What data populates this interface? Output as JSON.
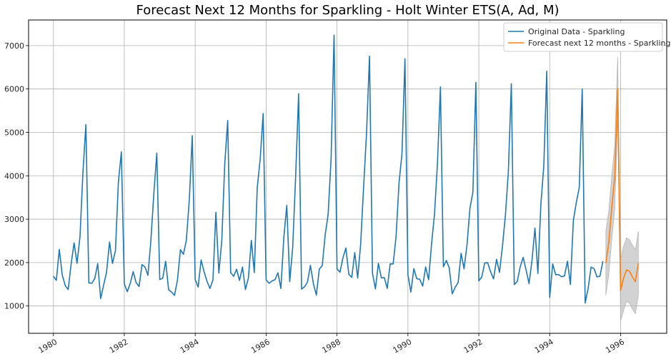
{
  "chart_data": {
    "type": "line",
    "title": "Forecast Next 12 Months for Sparkling - Holt Winter ETS(A, Ad, M)",
    "xlabel": "",
    "ylabel": "",
    "xlim": [
      1979.3,
      1997.3
    ],
    "ylim": [
      370,
      7590
    ],
    "x_ticks": [
      1980,
      1982,
      1984,
      1986,
      1988,
      1990,
      1992,
      1994,
      1996
    ],
    "x_tick_labels": [
      "1980",
      "1982",
      "1984",
      "1986",
      "1988",
      "1990",
      "1992",
      "1994",
      "1996"
    ],
    "y_ticks": [
      1000,
      2000,
      3000,
      4000,
      5000,
      6000,
      7000
    ],
    "y_tick_labels": [
      "1000",
      "2000",
      "3000",
      "4000",
      "5000",
      "6000",
      "7000"
    ],
    "grid": true,
    "legend_position": "top-right",
    "x_start": 1980.0,
    "x_step_months": 1,
    "series": [
      {
        "name": "Original Data - Sparkling",
        "color": "#1f77b4",
        "values": [
          1686,
          1591,
          2304,
          1712,
          1471,
          1377,
          1966,
          2453,
          1984,
          2596,
          4087,
          5179,
          1530,
          1523,
          1633,
          1976,
          1170,
          1480,
          1781,
          2472,
          1981,
          2273,
          3857,
          4551,
          1510,
          1329,
          1518,
          1790,
          1537,
          1449,
          1954,
          1897,
          1706,
          2514,
          3593,
          4524,
          1609,
          1638,
          2030,
          1375,
          1320,
          1245,
          1600,
          2298,
          2191,
          2511,
          3440,
          4923,
          1609,
          1435,
          2061,
          1789,
          1567,
          1404,
          1597,
          3159,
          1759,
          2504,
          4273,
          5274,
          1771,
          1682,
          1846,
          1589,
          1896,
          1379,
          1645,
          2512,
          1771,
          3727,
          4388,
          5434,
          1606,
          1523,
          1577,
          1605,
          1765,
          1403,
          2584,
          3318,
          1562,
          2349,
          3987,
          5891,
          1389,
          1442,
          1548,
          1935,
          1518,
          1250,
          1847,
          1930,
          2638,
          3114,
          4405,
          7242,
          1853,
          1779,
          2108,
          2336,
          1728,
          1661,
          2230,
          1645,
          2421,
          3740,
          4988,
          6757,
          1757,
          1394,
          1982,
          1650,
          1654,
          1406,
          1971,
          1968,
          2608,
          3845,
          4514,
          6694,
          1720,
          1321,
          1859,
          1628,
          1615,
          1457,
          1899,
          1605,
          2424,
          3116,
          4286,
          6047,
          1902,
          2049,
          1874,
          1279,
          1432,
          1540,
          2214,
          1857,
          2408,
          3252,
          3627,
          6153,
          1577,
          1667,
          1993,
          1997,
          1783,
          1625,
          2076,
          1773,
          2377,
          3088,
          4096,
          6119,
          1494,
          1564,
          1898,
          2121,
          1831,
          1515,
          2048,
          2795,
          1749,
          3339,
          4227,
          6410,
          1197,
          1968,
          1720,
          1725,
          1674,
          1693,
          2031,
          1495,
          2968,
          3385,
          3729,
          5999,
          1070,
          1402,
          1897,
          1862,
          1670,
          1688,
          2031
        ]
      },
      {
        "name": "Forecast next 12 months - Sparkling",
        "color": "#ff7f0e",
        "x_start": 1995.5833,
        "values": [
          1985,
          2462,
          3263,
          3962,
          6005,
          1366,
          1640,
          1832,
          1800,
          1665,
          1561,
          1984
        ],
        "lower": [
          1245,
          1725,
          2525,
          3225,
          5265,
          660,
          895,
          1105,
          1065,
          925,
          820,
          1245
        ],
        "upper": [
          2720,
          3200,
          4000,
          4700,
          6740,
          2090,
          2380,
          2570,
          2530,
          2400,
          2300,
          2720
        ],
        "band_color": "#bfbfbf"
      }
    ]
  }
}
